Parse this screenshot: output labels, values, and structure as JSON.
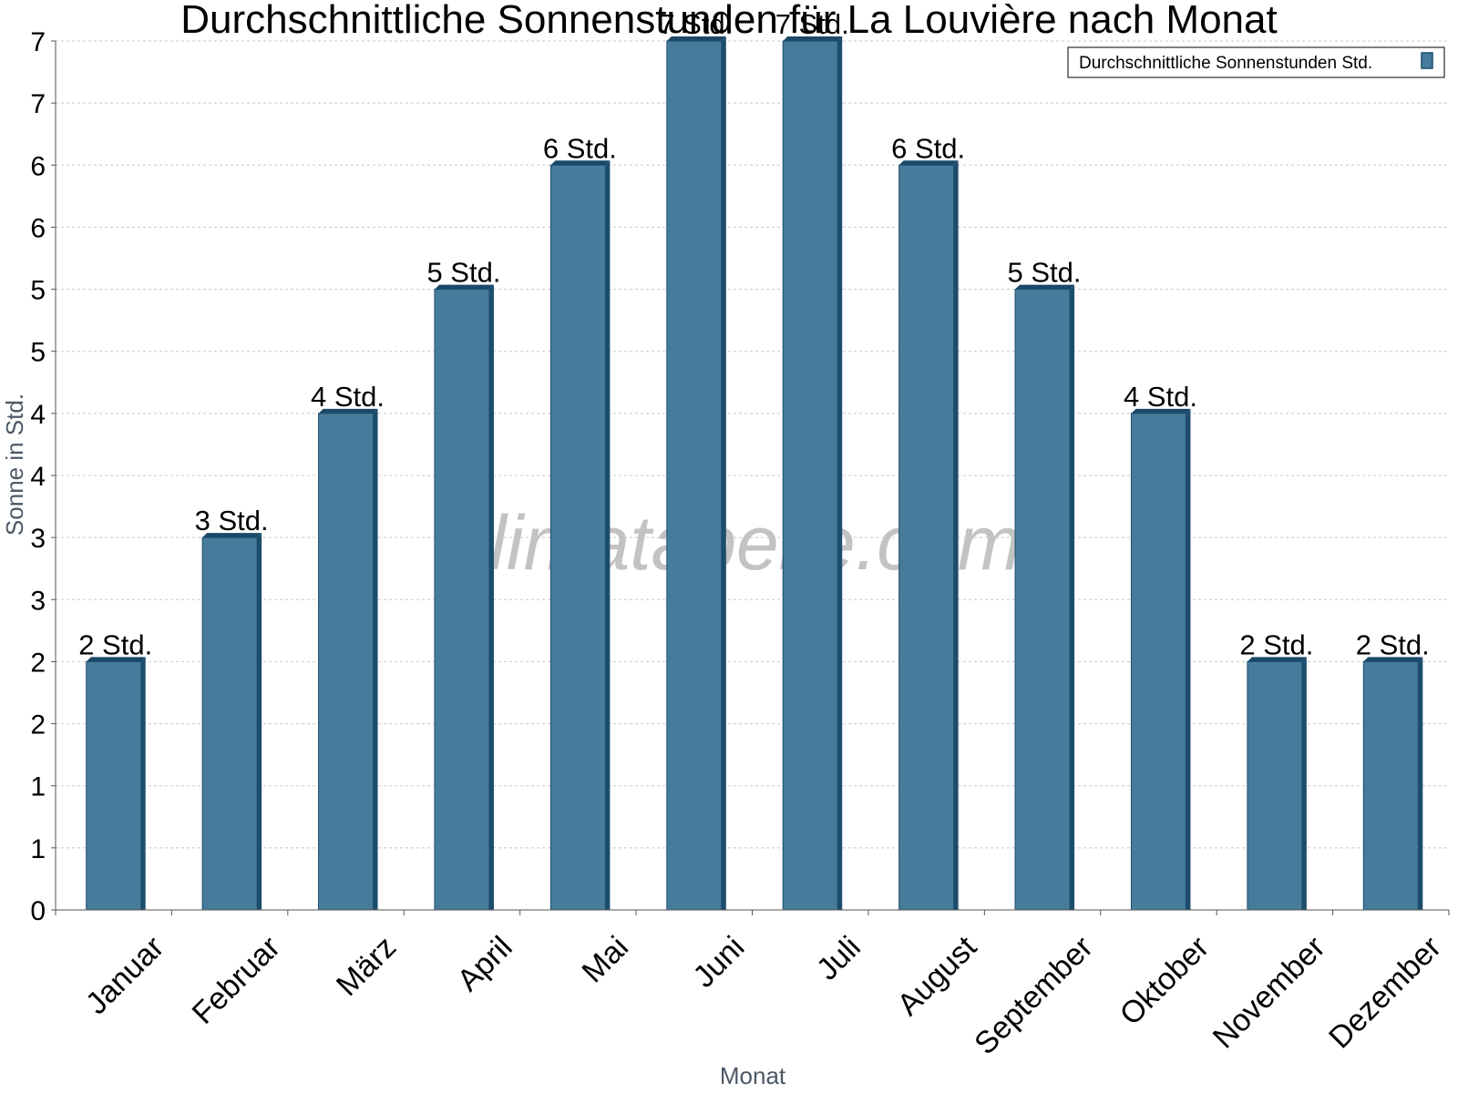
{
  "colors": {
    "bar": "#477b9c",
    "bar_side": "#1d4d6d",
    "bar_top": "#1a4968",
    "grid": "#c8c8c8",
    "axis": "#555555"
  },
  "watermark": "klimatabelle.com",
  "chart_data": {
    "type": "bar",
    "title": "Durchschnittliche Sonnenstunden für La Louvière nach Monat",
    "xlabel": "Monat",
    "ylabel": "Sonne in Std.",
    "categories": [
      "Januar",
      "Februar",
      "März",
      "April",
      "Mai",
      "Juni",
      "Juli",
      "August",
      "September",
      "Oktober",
      "November",
      "Dezember"
    ],
    "series": [
      {
        "name": "Durchschnittliche Sonnenstunden Std.",
        "values": [
          2,
          3,
          4,
          5,
          6,
          7,
          7,
          6,
          5,
          4,
          2,
          2
        ],
        "labels": [
          "2 Std.",
          "3 Std.",
          "4 Std.",
          "5 Std.",
          "6 Std.",
          "7 Std.",
          "7 Std.",
          "6 Std.",
          "5 Std.",
          "4 Std.",
          "2 Std.",
          "2 Std."
        ]
      }
    ],
    "ylim": [
      0,
      7
    ],
    "yticks": [
      0,
      0.5,
      1,
      1.5,
      2,
      2.5,
      3,
      3.5,
      4,
      4.5,
      5,
      5.5,
      6,
      6.5,
      7
    ],
    "ytick_labels": [
      "0",
      "1",
      "1",
      "2",
      "2",
      "3",
      "3",
      "4",
      "4",
      "5",
      "5",
      "6",
      "6",
      "7",
      "7"
    ],
    "grid": true,
    "legend_position": "top-right"
  }
}
